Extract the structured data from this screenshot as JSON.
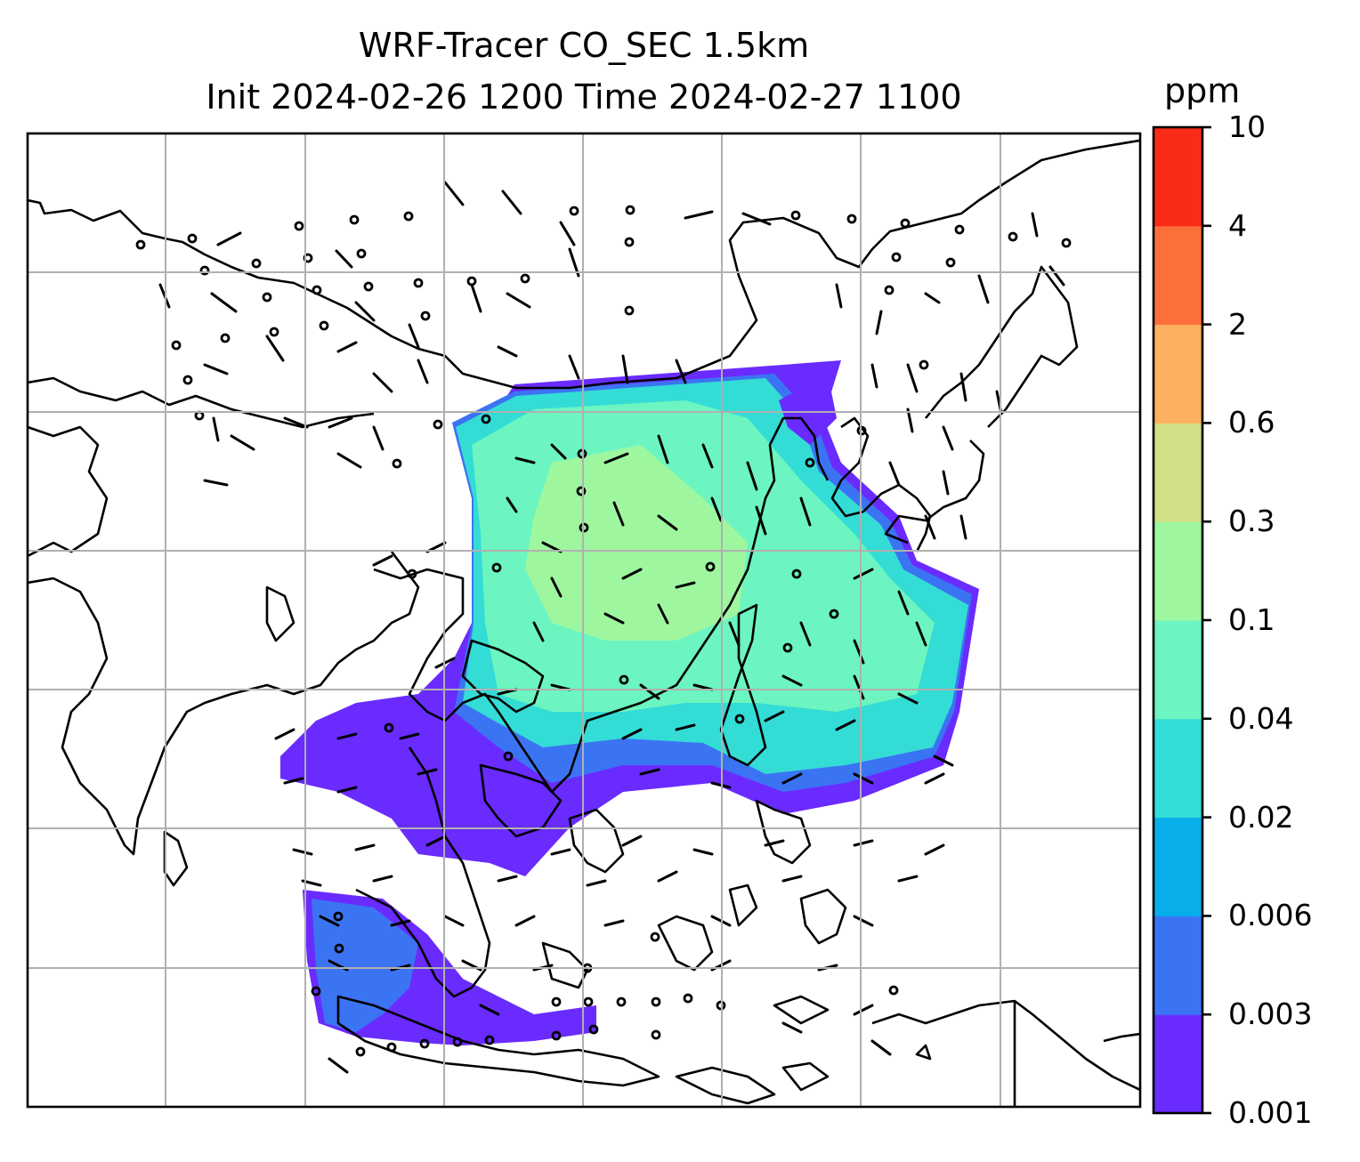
{
  "title": {
    "line1": "WRF-Tracer CO_SEC 1.5km",
    "line2": "Init 2024-02-26 1200 Time 2024-02-27 1100"
  },
  "colorbar": {
    "unit": "ppm",
    "levels": [
      "0.001",
      "0.003",
      "0.006",
      "0.02",
      "0.04",
      "0.1",
      "0.3",
      "0.6",
      "2",
      "4",
      "10"
    ],
    "colors": [
      "#6a2bff",
      "#3b74f3",
      "#07aee9",
      "#34dcd6",
      "#6cf5c0",
      "#9ef79f",
      "#d1e085",
      "#fdb05f",
      "#fd6f3a",
      "#fa2b17"
    ]
  },
  "map": {
    "gridlines": "on",
    "field": "CO_SEC tracer concentration",
    "wind_barbs": "on"
  }
}
